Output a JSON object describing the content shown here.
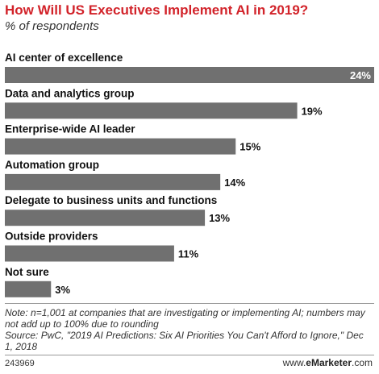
{
  "header": {
    "title": "How Will US Executives Implement AI in 2019?",
    "subtitle": "% of respondents"
  },
  "chart_data": {
    "type": "bar",
    "orientation": "horizontal",
    "categories": [
      "AI center of excellence",
      "Data and analytics group",
      "Enterprise-wide AI leader",
      "Automation group",
      "Delegate to business units and functions",
      "Outside providers",
      "Not sure"
    ],
    "values": [
      24,
      19,
      15,
      14,
      13,
      11,
      3
    ],
    "value_labels": [
      "24%",
      "19%",
      "15%",
      "14%",
      "13%",
      "11%",
      "3%"
    ],
    "unit": "%",
    "bar_color": "#707070",
    "title": "How Will US Executives Implement AI in 2019?",
    "subtitle": "% of respondents"
  },
  "footer": {
    "note": "Note: n=1,001 at companies that are investigating or implementing AI; numbers may not add up to 100% due to rounding",
    "source": "Source: PwC, \"2019 AI Predictions: Six AI Priorities You Can't Afford to Ignore,\" Dec 1, 2018",
    "chart_id": "243969",
    "brand_prefix": "www.",
    "brand_name": "eMarketer",
    "brand_suffix": ".com"
  }
}
